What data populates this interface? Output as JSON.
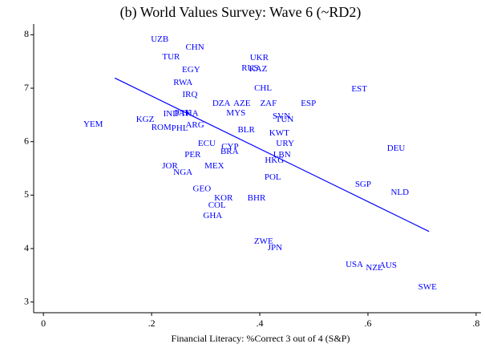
{
  "chart_data": {
    "type": "scatter",
    "title": "(b) World Values Survey: Wave 6 (~RD2)",
    "x_label": "Financial Literacy: %Correct 3 out of 4 (S&P)",
    "color": "#0000ff",
    "labels": [
      "UZB",
      "CHN",
      "TUR",
      "UKR",
      "RUS",
      "KAZ",
      "EGY",
      "RWA",
      "IRQ",
      "CHL",
      "EST",
      "DZA",
      "AZE",
      "ZAF",
      "ESP",
      "IND",
      "PAK",
      "THA",
      "MYS",
      "SVN",
      "TUN",
      "KGZ",
      "YEM",
      "ROM",
      "PHL",
      "ARG",
      "BLR",
      "KWT",
      "URY",
      "DEU",
      "ECU",
      "CYP",
      "BRA",
      "PER",
      "LBN",
      "HKG",
      "JOR",
      "MEX",
      "NGA",
      "POL",
      "SGP",
      "NLD",
      "GEO",
      "KOR",
      "BHR",
      "COL",
      "GHA",
      "ZWE",
      "JPN",
      "USA",
      "NZL",
      "AUS",
      "SWE"
    ],
    "x": [
      0.215,
      0.28,
      0.236,
      0.399,
      0.382,
      0.397,
      0.273,
      0.258,
      0.271,
      0.406,
      0.584,
      0.329,
      0.367,
      0.416,
      0.49,
      0.236,
      0.258,
      0.27,
      0.356,
      0.44,
      0.446,
      0.188,
      0.092,
      0.218,
      0.252,
      0.28,
      0.375,
      0.436,
      0.447,
      0.652,
      0.302,
      0.345,
      0.344,
      0.276,
      0.441,
      0.427,
      0.234,
      0.316,
      0.258,
      0.424,
      0.591,
      0.659,
      0.293,
      0.333,
      0.394,
      0.321,
      0.313,
      0.407,
      0.428,
      0.575,
      0.612,
      0.637,
      0.71
    ],
    "values": [
      7.91,
      7.76,
      7.58,
      7.56,
      7.37,
      7.35,
      7.34,
      7.1,
      6.87,
      6.99,
      6.98,
      6.71,
      6.71,
      6.71,
      6.71,
      6.51,
      6.53,
      6.52,
      6.53,
      6.47,
      6.41,
      6.41,
      6.32,
      6.26,
      6.24,
      6.3,
      6.21,
      6.15,
      5.96,
      5.87,
      5.96,
      5.9,
      5.81,
      5.75,
      5.75,
      5.64,
      5.54,
      5.54,
      5.42,
      5.33,
      5.19,
      5.04,
      5.11,
      4.94,
      4.94,
      4.8,
      4.61,
      4.13,
      4.01,
      3.69,
      3.63,
      3.68,
      3.27
    ],
    "fit_line": {
      "x": [
        0.132,
        0.713
      ],
      "values": [
        7.19,
        4.32
      ]
    },
    "xlim": [
      -0.018,
      0.809
    ],
    "ylim": [
      2.8,
      8.2
    ],
    "xticks": [
      0,
      {
        "value": 0.2,
        "label": ".2"
      },
      {
        "value": 0.4,
        "label": ".4"
      },
      {
        "value": 0.6,
        "label": ".6"
      },
      {
        "value": 0.8,
        "label": ".8"
      }
    ],
    "yticks": [
      3,
      4,
      5,
      6,
      7,
      8
    ]
  }
}
